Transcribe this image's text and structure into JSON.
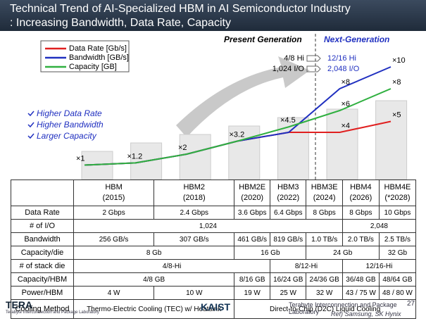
{
  "header": {
    "title": "Technical Trend of AI-Specialized HBM in AI Semiconductor Industry",
    "subtitle": ": Increasing Bandwidth, Data Rate, Capacity"
  },
  "chart_data": {
    "type": "line",
    "categories": [
      "HBM",
      "HBM2",
      "HBM2E",
      "HBM3",
      "HBM3E",
      "HBM4",
      "HBM4E"
    ],
    "series": [
      {
        "name": "Data Rate [Gb/s]",
        "color": "#e02020",
        "values": [
          1,
          1.2,
          2,
          3.2,
          4,
          4,
          5
        ],
        "value_labels": [
          null,
          null,
          null,
          null,
          null,
          "×4",
          "×5"
        ]
      },
      {
        "name": "Bandwidth [GB/s]",
        "color": "#2030c0",
        "values": [
          1,
          1.2,
          2,
          3.2,
          4,
          8,
          10
        ],
        "value_labels": [
          null,
          null,
          null,
          null,
          null,
          "×8",
          "×10"
        ]
      },
      {
        "name": "Capacity [GB]",
        "color": "#30b040",
        "values": [
          1,
          1.2,
          2,
          3.2,
          4.5,
          6,
          8
        ],
        "value_labels": [
          "×1",
          "×1.2",
          "×2",
          "×3.2",
          "×4.5",
          "×6",
          "×8"
        ]
      }
    ],
    "annotations": {
      "present": "Present Generation",
      "next": "Next-Generation",
      "present_hi": "4/8 Hi",
      "present_io": "1,024 I/O",
      "next_hi": "12/16 Hi",
      "next_io": "2,048 I/O"
    },
    "highlights": [
      "Higher Data Rate",
      "Higher Bandwidth",
      "Larger Capacity"
    ]
  },
  "table": {
    "columns": [
      [
        "HBM",
        "(2015)"
      ],
      [
        "HBM2",
        "(2018)"
      ],
      [
        "HBM2E",
        "(2020)"
      ],
      [
        "HBM3",
        "(2022)"
      ],
      [
        "HBM3E",
        "(2024)"
      ],
      [
        "HBM4",
        "(2026)"
      ],
      [
        "HBM4E",
        "(*2028)"
      ]
    ],
    "rows": [
      [
        "Data Rate",
        "2 Gbps",
        "2.4 Gbps",
        "3.6 Gbps",
        "6.4 Gbps",
        "8 Gbps",
        "8 Gbps",
        "10 Gbps"
      ],
      [
        "# of I/O",
        "1,024",
        "2,048"
      ],
      [
        "Bandwidth",
        "256 GB/s",
        "307 GB/s",
        "461 GB/s",
        "819 GB/s",
        "1.0 TB/s",
        "2.0 TB/s",
        "2.5 TB/s"
      ],
      [
        "Capacity/die",
        "8 Gb",
        "16 Gb",
        "24 Gb",
        "32 Gb"
      ],
      [
        "# of stack die",
        "4/8-Hi",
        "8/12-Hi",
        "12/16-Hi"
      ],
      [
        "Capacity/HBM",
        "4/8 GB",
        "8/16 GB",
        "16/24 GB",
        "24/36 GB",
        "36/48 GB",
        "48/64 GB"
      ],
      [
        "Power/HBM",
        "4 W",
        "10 W",
        "19 W",
        "25 W",
        "32 W",
        "43 / 75 W",
        "48 / 80 W"
      ],
      [
        "Cooling Method",
        "Thermo-Electric Cooling (TEC) w/ Heatsink",
        "Direct-to-Chip (D2C) Liquid Cooling"
      ]
    ]
  },
  "footer": {
    "lab": "TERA",
    "lab_full": "Terabyte Interconnection and Package Laboratory",
    "school": "KAIST",
    "page": "27",
    "ref": "Ref) Samsung, SK Hynix"
  }
}
